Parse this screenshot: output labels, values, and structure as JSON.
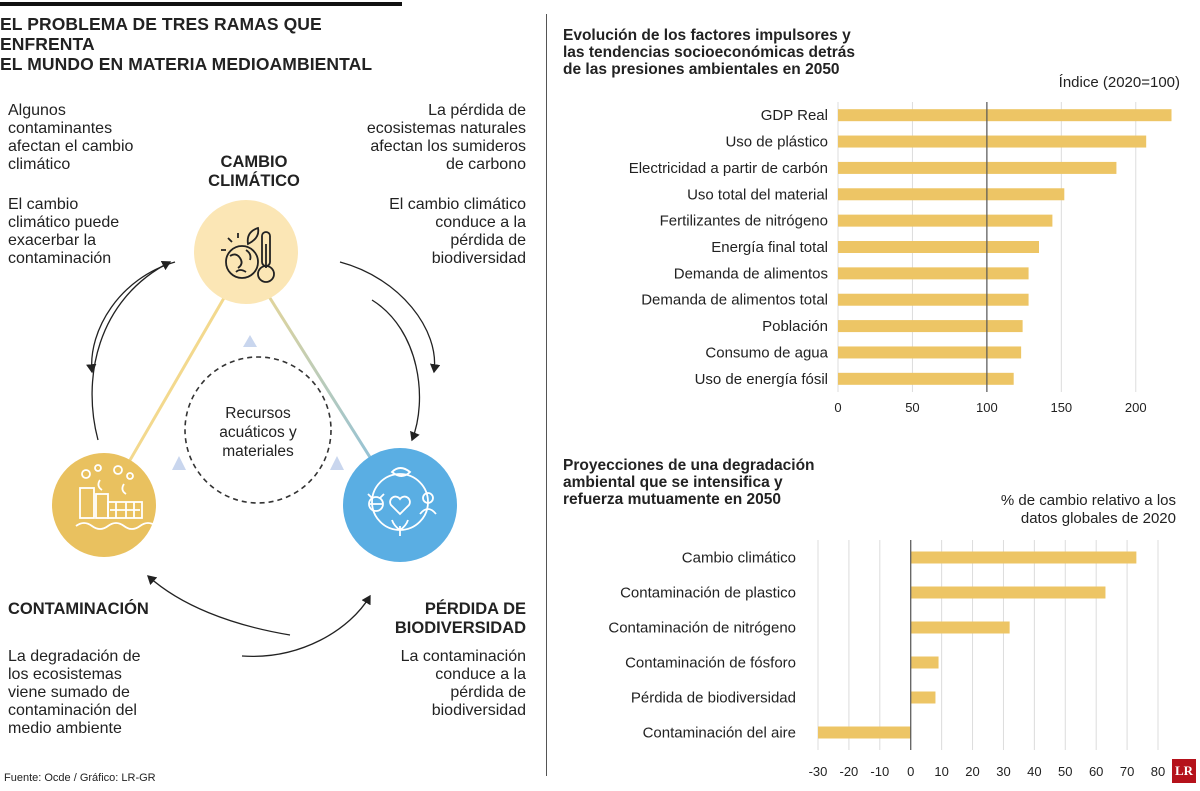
{
  "header": {
    "title_line1": "EL PROBLEMA DE TRES RAMAS QUE ENFRENTA",
    "title_line2": "EL MUNDO EN MATERIA MEDIOAMBIENTAL"
  },
  "diagram": {
    "notes": {
      "top_left_1": [
        "Algunos",
        "contaminantes",
        "afectan el cambio",
        "climático"
      ],
      "top_left_2": [
        "El cambio",
        "climático puede",
        "exacerbar la",
        "contaminación"
      ],
      "top_right_1": [
        "La pérdida de",
        "ecosistemas naturales",
        "afectan los sumideros",
        "de carbono"
      ],
      "top_right_2": [
        "El cambio climático",
        "conduce a la",
        "pérdida de",
        "biodiversidad"
      ],
      "bottom_left": [
        "La degradación de",
        "los ecosistemas",
        "viene sumado de",
        "contaminación del",
        "medio ambiente"
      ],
      "bottom_right": [
        "La contaminación",
        "conduce a la",
        "pérdida de",
        "biodiversidad"
      ]
    },
    "nodes": {
      "climate_line1": "CAMBIO",
      "climate_line2": "CLIMÁTICO",
      "pollution": "CONTAMINACIÓN",
      "biodiversity_line1": "PÉRDIDA DE",
      "biodiversity_line2": "BIODIVERSIDAD"
    },
    "center_text": [
      "Recursos",
      "acuáticos y",
      "materiales"
    ],
    "icons": {
      "climate": "earth-thermometer-icon",
      "pollution": "factory-pollution-icon",
      "biodiversity": "biodiversity-cycle-icon"
    },
    "colors": {
      "climate": "#fbe6b5",
      "pollution": "#e9c15f",
      "biodiversity": "#5aaee3"
    }
  },
  "source": "Fuente: Ocde / Gráfico: LR-GR",
  "logo": "LR",
  "chart_data": [
    {
      "type": "bar",
      "orientation": "horizontal",
      "title": [
        "Evolución de los factores impulsores y",
        "las tendencias socioeconómicas detrás",
        "de las presiones ambientales en 2050"
      ],
      "unit_label": [
        "Índice (2020=100)"
      ],
      "categories": [
        "GDP Real",
        "Uso de plástico",
        "Electricidad a partir de carbón",
        "Uso total del material",
        "Fertilizantes de nitrógeno",
        "Energía final total",
        "Demanda de alimentos",
        "Demanda de alimentos total",
        "Población",
        "Consumo de agua",
        "Uso de energía fósil"
      ],
      "values": [
        224,
        207,
        187,
        152,
        144,
        135,
        128,
        128,
        124,
        123,
        118
      ],
      "xlim": [
        0,
        225
      ],
      "ticks": [
        0,
        50,
        100,
        150,
        200
      ],
      "reference_line": 100,
      "grid": true,
      "bar_color": "#edc565"
    },
    {
      "type": "bar",
      "orientation": "horizontal",
      "title": [
        "Proyecciones de una degradación",
        "ambiental que se intensifica y",
        "refuerza mutuamente en 2050"
      ],
      "unit_label": [
        "% de cambio relativo a los",
        "datos globales de 2020"
      ],
      "categories": [
        "Cambio climático",
        "Contaminación de plastico",
        "Contaminación de nitrógeno",
        "Contaminación de fósforo",
        "Pérdida de biodiversidad",
        "Contaminación del aire"
      ],
      "values": [
        73,
        63,
        32,
        9,
        8,
        -30
      ],
      "xlim": [
        -30,
        80
      ],
      "ticks": [
        -30,
        -20,
        -10,
        0,
        10,
        20,
        30,
        40,
        50,
        60,
        70,
        80
      ],
      "reference_line": 0,
      "grid": true,
      "bar_color": "#edc565"
    }
  ]
}
